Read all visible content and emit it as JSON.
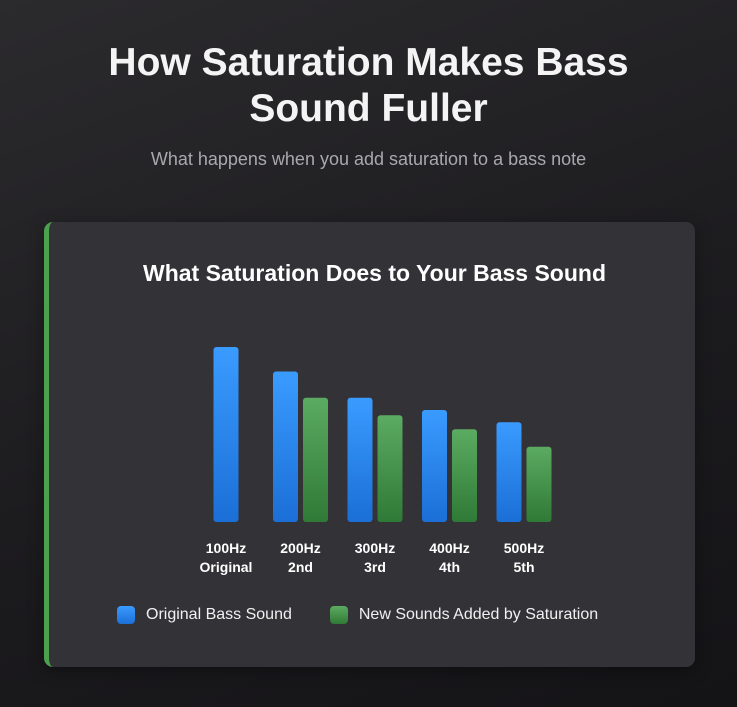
{
  "header": {
    "title_line1": "How Saturation Makes Bass",
    "title_line2": "Sound Fuller",
    "subtitle": "What happens when you add saturation to a bass note"
  },
  "accent_color": "#4ca14f",
  "chart_data": {
    "type": "bar",
    "title": "What Saturation Does to Your Bass Sound",
    "xlabel": "",
    "ylabel": "",
    "categories": [
      [
        "100Hz",
        "Original"
      ],
      [
        "200Hz",
        "2nd"
      ],
      [
        "300Hz",
        "3rd"
      ],
      [
        "400Hz",
        "4th"
      ],
      [
        "500Hz",
        "5th"
      ]
    ],
    "series": [
      {
        "name": "Original Bass Sound",
        "color": "#2f8df0",
        "values": [
          100,
          86,
          71,
          64,
          57
        ]
      },
      {
        "name": "New Sounds Added by Saturation",
        "color": "#4f9d55",
        "values": [
          null,
          71,
          61,
          53,
          43
        ]
      }
    ],
    "ylim": [
      0,
      100
    ],
    "grid": false,
    "legend_position": "bottom"
  }
}
